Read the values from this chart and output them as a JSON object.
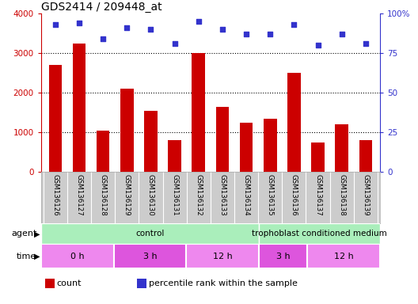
{
  "title": "GDS2414 / 209448_at",
  "samples": [
    "GSM136126",
    "GSM136127",
    "GSM136128",
    "GSM136129",
    "GSM136130",
    "GSM136131",
    "GSM136132",
    "GSM136133",
    "GSM136134",
    "GSM136135",
    "GSM136136",
    "GSM136137",
    "GSM136138",
    "GSM136139"
  ],
  "counts": [
    2700,
    3250,
    1050,
    2100,
    1550,
    800,
    3000,
    1650,
    1250,
    1350,
    2500,
    750,
    1200,
    800
  ],
  "percentile_ranks": [
    93,
    94,
    84,
    91,
    90,
    81,
    95,
    90,
    87,
    87,
    93,
    80,
    87,
    81
  ],
  "bar_color": "#cc0000",
  "dot_color": "#3333cc",
  "left_ylim": [
    0,
    4000
  ],
  "left_yticks": [
    0,
    1000,
    2000,
    3000,
    4000
  ],
  "right_ylim": [
    0,
    100
  ],
  "right_yticks": [
    0,
    25,
    50,
    75,
    100
  ],
  "right_yticklabels": [
    "0",
    "25",
    "50",
    "75",
    "100%"
  ],
  "left_tick_color": "#cc0000",
  "right_tick_color": "#3333cc",
  "grid_yticks": [
    1000,
    2000,
    3000
  ],
  "agent_groups": [
    {
      "text": "control",
      "span": [
        0,
        9
      ],
      "color": "#aaeebb"
    },
    {
      "text": "trophoblast conditioned medium",
      "span": [
        9,
        14
      ],
      "color": "#aaeebb"
    }
  ],
  "time_groups": [
    {
      "text": "0 h",
      "span": [
        0,
        3
      ],
      "color": "#ee88ee"
    },
    {
      "text": "3 h",
      "span": [
        3,
        6
      ],
      "color": "#dd55dd"
    },
    {
      "text": "12 h",
      "span": [
        6,
        9
      ],
      "color": "#ee88ee"
    },
    {
      "text": "3 h",
      "span": [
        9,
        11
      ],
      "color": "#dd55dd"
    },
    {
      "text": "12 h",
      "span": [
        11,
        14
      ],
      "color": "#ee88ee"
    }
  ],
  "legend_items": [
    {
      "color": "#cc0000",
      "label": "count"
    },
    {
      "color": "#3333cc",
      "label": "percentile rank within the sample"
    }
  ],
  "bar_width": 0.55,
  "sample_label_bg": "#cccccc",
  "sample_label_sep_color": "#ffffff"
}
